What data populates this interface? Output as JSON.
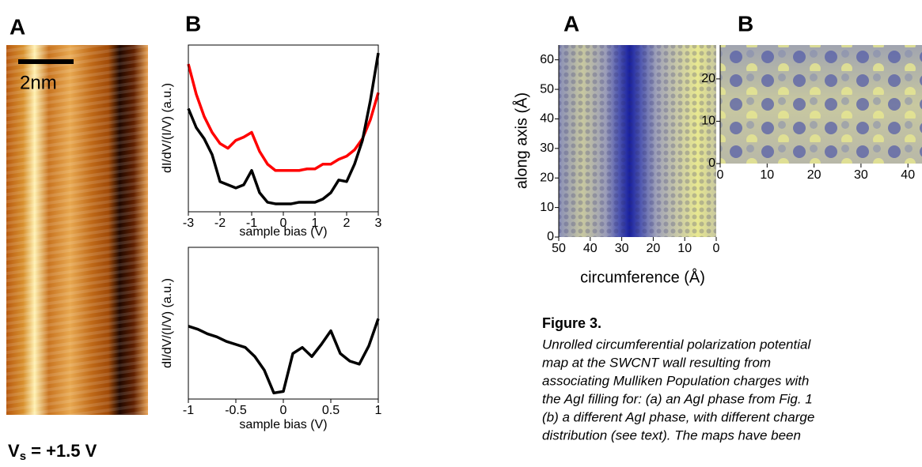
{
  "panels": {
    "left_a": "A",
    "left_b": "B",
    "right_a": "A",
    "right_b": "B",
    "scale_bar": "2nm",
    "bias_symbol": "V",
    "bias_subscript": "s",
    "bias_value": " = +1.5 V"
  },
  "chart_data": [
    {
      "type": "line",
      "x_label": "sample bias (V)",
      "y_label": "dI/dV/(I/V) (a.u.)",
      "x": [
        -3,
        -2.75,
        -2.5,
        -2.25,
        -2,
        -1.75,
        -1.5,
        -1.25,
        -1,
        -0.75,
        -0.5,
        -0.25,
        0,
        0.25,
        0.5,
        0.75,
        1,
        1.25,
        1.5,
        1.75,
        2,
        2.25,
        2.5,
        2.75,
        3
      ],
      "series": [
        {
          "color": "#ff0000",
          "values": [
            9.3,
            7.4,
            6.0,
            5.0,
            4.3,
            4.0,
            4.5,
            4.7,
            5.0,
            3.8,
            3.0,
            2.6,
            2.6,
            2.6,
            2.6,
            2.7,
            2.7,
            3.0,
            3.0,
            3.3,
            3.5,
            3.9,
            4.6,
            5.8,
            7.5
          ]
        },
        {
          "color": "#000000",
          "values": [
            6.5,
            5.3,
            4.6,
            3.6,
            1.9,
            1.7,
            1.5,
            1.7,
            2.6,
            1.2,
            0.6,
            0.5,
            0.5,
            0.5,
            0.6,
            0.6,
            0.6,
            0.8,
            1.2,
            2.0,
            1.9,
            3.0,
            4.5,
            7.0,
            10
          ]
        }
      ],
      "xlim": [
        -3,
        3
      ],
      "xticks": [
        -3,
        -2,
        -1,
        0,
        1,
        2,
        3
      ],
      "ylim": [
        0,
        10.5
      ]
    },
    {
      "type": "line",
      "x_label": "sample bias (V)",
      "y_label": "dI/dV/(I/V) (a.u.)",
      "x": [
        -1,
        -0.9,
        -0.8,
        -0.7,
        -0.6,
        -0.5,
        -0.4,
        -0.3,
        -0.2,
        -0.1,
        0,
        0.1,
        0.2,
        0.3,
        0.4,
        0.5,
        0.6,
        0.7,
        0.8,
        0.9,
        1
      ],
      "color": "#000000",
      "values": [
        4.8,
        4.6,
        4.3,
        4.1,
        3.8,
        3.6,
        3.4,
        2.8,
        1.9,
        0.4,
        0.5,
        3.0,
        3.4,
        2.8,
        3.6,
        4.5,
        3.0,
        2.5,
        2.3,
        3.5,
        5.3
      ],
      "xlim": [
        -1,
        1
      ],
      "xticks": [
        -1,
        -0.5,
        0,
        0.5,
        1
      ],
      "ylim": [
        0,
        10
      ]
    },
    {
      "type": "heatmap",
      "x_label": "circumference (Å)",
      "y_label": "along axis (Å)",
      "xlim": [
        50,
        0
      ],
      "xticks": [
        50,
        40,
        30,
        20,
        10,
        0
      ],
      "ylim": [
        0,
        65
      ],
      "yticks": [
        0,
        10,
        20,
        30,
        40,
        50,
        60
      ]
    },
    {
      "type": "heatmap",
      "xlim": [
        0,
        43
      ],
      "xticks": [
        0,
        10,
        20,
        30,
        40
      ],
      "ylim": [
        0,
        28
      ],
      "yticks": [
        0,
        10,
        20
      ]
    }
  ],
  "caption": {
    "title": "Figure 3.",
    "lines": [
      "Unrolled circumferential polarization potential",
      "map at the SWCNT wall resulting from",
      "associating Mulliken Population charges with",
      "the AgI filling for: (a) an AgI phase from Fig. 1",
      "(b) a different AgI phase, with different charge",
      "distribution (see text). The maps have been"
    ]
  }
}
